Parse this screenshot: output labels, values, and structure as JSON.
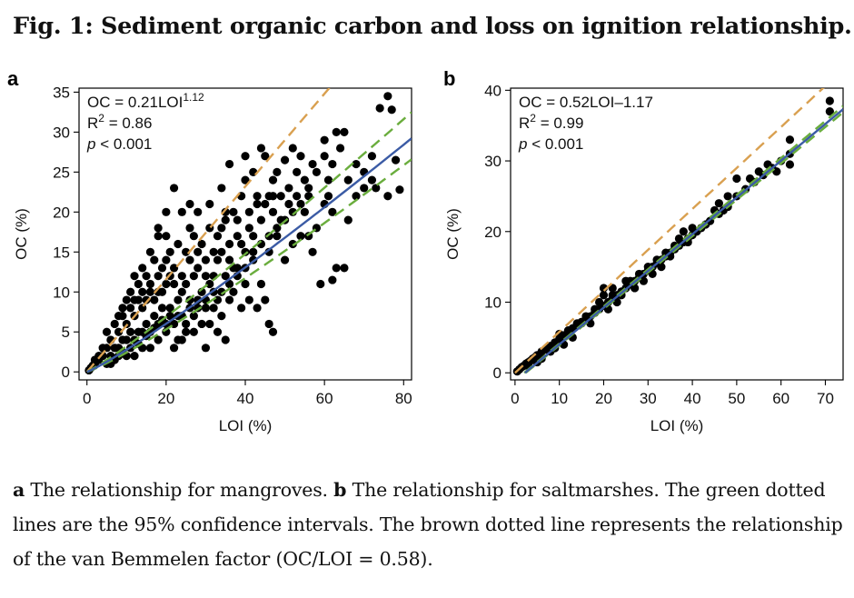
{
  "figure": {
    "title": "Fig. 1: Sediment organic carbon and loss on ignition relationship.",
    "caption": {
      "a_label": "a",
      "a_text": " The relationship for mangroves. ",
      "b_label": "b",
      "b_text": " The relationship for saltmarshes. The green dotted lines are the 95% confidence intervals. The brown dotted line represents the relationship of the van Bemmelen factor (OC/LOI = 0.58)."
    }
  },
  "colors": {
    "points": "#000000",
    "fit": "#3b5ba5",
    "ci": "#6aad3d",
    "van_bemmelen": "#d9a050"
  },
  "chart_data": [
    {
      "panel": "a",
      "type": "scatter",
      "xlabel": "LOI (%)",
      "ylabel": "OC (%)",
      "xlim": [
        -2,
        82
      ],
      "ylim": [
        -1,
        35.5
      ],
      "xticks": [
        0,
        20,
        40,
        60,
        80
      ],
      "yticks": [
        0,
        5,
        10,
        15,
        20,
        25,
        30,
        35
      ],
      "annotation": {
        "line1_base": "OC = 0.21LOI",
        "line1_exp": "1.12",
        "r2_label": "R",
        "r2_exp": "2",
        "r2_value": " = 0.86",
        "p_label": "p",
        "p_value": " < 0.001"
      },
      "fit": {
        "form": "power",
        "a": 0.21,
        "b": 1.12
      },
      "ci": [
        {
          "form": "power",
          "a": 0.175,
          "b": 1.14
        },
        {
          "form": "power",
          "a": 0.255,
          "b": 1.1
        }
      ],
      "van_bemmelen": {
        "slope": 0.58
      },
      "points": [
        [
          76,
          34.5
        ],
        [
          77,
          32.8
        ],
        [
          74,
          33
        ],
        [
          72,
          27
        ],
        [
          79,
          22.8
        ],
        [
          76,
          22
        ],
        [
          78,
          26.5
        ],
        [
          65,
          30
        ],
        [
          60,
          27
        ],
        [
          57,
          26
        ],
        [
          58,
          25
        ],
        [
          55,
          24
        ],
        [
          53,
          22
        ],
        [
          51,
          23
        ],
        [
          63,
          30
        ],
        [
          64,
          28
        ],
        [
          62,
          26
        ],
        [
          61,
          24
        ],
        [
          70,
          25
        ],
        [
          72,
          24
        ],
        [
          73,
          23
        ],
        [
          66,
          19
        ],
        [
          61,
          22
        ],
        [
          62,
          11.5
        ],
        [
          59,
          11
        ],
        [
          63,
          13
        ],
        [
          60,
          29
        ],
        [
          56,
          23
        ],
        [
          54,
          27
        ],
        [
          50,
          26.5
        ],
        [
          48,
          25
        ],
        [
          45,
          27
        ],
        [
          46,
          22
        ],
        [
          43,
          22
        ],
        [
          41,
          18
        ],
        [
          44,
          19
        ],
        [
          47,
          20
        ],
        [
          42,
          14
        ],
        [
          38,
          13
        ],
        [
          36,
          9
        ],
        [
          34,
          7
        ],
        [
          32,
          10
        ],
        [
          30,
          12
        ],
        [
          28,
          9
        ],
        [
          26,
          9
        ],
        [
          24,
          10
        ],
        [
          22,
          11
        ],
        [
          25,
          15
        ],
        [
          27,
          17
        ],
        [
          29,
          16
        ],
        [
          31,
          18
        ],
        [
          33,
          17
        ],
        [
          35,
          19
        ],
        [
          37,
          20
        ],
        [
          39,
          22
        ],
        [
          40,
          24
        ],
        [
          42,
          25
        ],
        [
          36,
          26
        ],
        [
          34,
          23
        ],
        [
          31,
          21
        ],
        [
          28,
          20
        ],
        [
          26,
          18
        ],
        [
          23,
          16
        ],
        [
          20,
          14
        ],
        [
          22,
          23
        ],
        [
          24,
          20
        ],
        [
          26,
          21
        ],
        [
          18,
          12
        ],
        [
          16,
          10
        ],
        [
          14,
          8
        ],
        [
          12,
          7
        ],
        [
          10,
          6
        ],
        [
          8,
          5
        ],
        [
          6,
          4
        ],
        [
          5,
          5
        ],
        [
          4,
          2
        ],
        [
          3,
          1.5
        ],
        [
          2,
          1
        ],
        [
          1,
          0.5
        ],
        [
          0.5,
          0.2
        ],
        [
          7,
          3
        ],
        [
          9,
          4
        ],
        [
          11,
          5
        ],
        [
          13,
          5
        ],
        [
          15,
          6
        ],
        [
          17,
          7
        ],
        [
          19,
          8
        ],
        [
          21,
          8
        ],
        [
          23,
          7
        ],
        [
          25,
          6
        ],
        [
          27,
          7
        ],
        [
          29,
          6
        ],
        [
          31,
          6
        ],
        [
          33,
          5
        ],
        [
          35,
          4
        ],
        [
          20,
          5
        ],
        [
          18,
          4
        ],
        [
          16,
          3
        ],
        [
          14,
          3
        ],
        [
          12,
          2
        ],
        [
          10,
          2
        ],
        [
          8,
          2
        ],
        [
          22,
          3
        ],
        [
          24,
          4
        ],
        [
          15,
          12
        ],
        [
          13,
          11
        ],
        [
          11,
          10
        ],
        [
          17,
          14
        ],
        [
          19,
          13
        ],
        [
          21,
          15
        ],
        [
          44,
          11
        ],
        [
          45,
          9
        ],
        [
          43,
          8
        ],
        [
          46,
          6
        ],
        [
          47,
          5
        ],
        [
          30,
          3
        ],
        [
          35,
          20
        ],
        [
          38,
          17
        ],
        [
          40,
          15
        ],
        [
          42,
          17
        ],
        [
          46,
          15
        ],
        [
          48,
          17
        ],
        [
          50,
          14
        ],
        [
          52,
          16
        ],
        [
          45,
          21
        ],
        [
          49,
          19
        ],
        [
          41,
          9
        ],
        [
          39,
          8
        ],
        [
          37,
          10
        ],
        [
          40,
          11
        ],
        [
          32,
          12
        ],
        [
          30,
          14
        ],
        [
          28,
          13
        ],
        [
          33,
          14
        ],
        [
          34,
          15
        ],
        [
          36,
          16
        ],
        [
          20,
          20
        ],
        [
          18,
          18
        ],
        [
          40,
          27
        ],
        [
          44,
          28
        ],
        [
          52,
          28
        ],
        [
          55,
          20
        ],
        [
          58,
          18
        ],
        [
          54,
          17
        ],
        [
          56,
          17
        ],
        [
          57,
          15
        ],
        [
          65,
          13
        ],
        [
          68,
          26
        ],
        [
          70,
          23
        ],
        [
          47,
          24
        ],
        [
          53,
          25
        ],
        [
          49,
          22
        ],
        [
          6,
          1
        ],
        [
          7,
          1.5
        ],
        [
          9,
          2.5
        ],
        [
          11,
          3
        ],
        [
          13,
          3.5
        ],
        [
          15,
          4.5
        ],
        [
          17,
          5.5
        ],
        [
          19,
          6.5
        ],
        [
          21,
          7
        ],
        [
          23,
          9
        ],
        [
          25,
          11
        ],
        [
          27,
          12
        ],
        [
          29,
          10
        ],
        [
          31,
          11
        ],
        [
          33,
          9
        ],
        [
          35,
          12
        ],
        [
          37,
          13
        ],
        [
          14,
          13
        ],
        [
          16,
          15
        ],
        [
          12,
          12
        ],
        [
          10,
          9
        ],
        [
          8,
          7
        ],
        [
          18,
          17
        ],
        [
          20,
          17
        ],
        [
          24,
          12
        ],
        [
          26,
          14
        ],
        [
          28,
          15
        ],
        [
          22,
          13
        ],
        [
          15,
          9
        ],
        [
          17,
          9
        ],
        [
          19,
          10
        ],
        [
          13,
          9
        ],
        [
          11,
          8
        ],
        [
          9,
          7
        ],
        [
          7,
          6
        ],
        [
          5,
          3
        ],
        [
          4,
          3
        ],
        [
          3,
          2
        ],
        [
          2,
          1.5
        ],
        [
          1.5,
          0.8
        ],
        [
          5,
          1
        ],
        [
          6,
          2
        ],
        [
          8,
          3
        ],
        [
          10,
          4
        ],
        [
          12,
          4
        ],
        [
          14,
          5
        ],
        [
          16,
          5
        ],
        [
          18,
          6
        ],
        [
          20,
          6
        ],
        [
          22,
          6
        ],
        [
          24,
          7
        ],
        [
          26,
          8
        ],
        [
          28,
          8
        ],
        [
          30,
          9
        ],
        [
          32,
          8
        ],
        [
          34,
          10
        ],
        [
          36,
          11
        ],
        [
          38,
          12
        ],
        [
          40,
          13
        ],
        [
          42,
          15
        ],
        [
          44,
          16
        ],
        [
          46,
          17
        ],
        [
          48,
          18
        ],
        [
          50,
          19
        ],
        [
          52,
          20
        ],
        [
          54,
          21
        ],
        [
          56,
          22
        ],
        [
          23,
          4
        ],
        [
          25,
          5
        ],
        [
          27,
          5
        ],
        [
          9,
          8
        ],
        [
          12,
          9
        ],
        [
          14,
          10
        ],
        [
          16,
          11
        ],
        [
          18,
          10
        ],
        [
          20,
          11
        ],
        [
          21,
          12
        ],
        [
          30,
          8
        ],
        [
          32,
          15
        ],
        [
          34,
          18
        ],
        [
          36,
          14
        ],
        [
          38,
          19
        ],
        [
          39,
          16
        ],
        [
          41,
          20
        ],
        [
          43,
          21
        ],
        [
          47,
          22
        ],
        [
          51,
          21
        ],
        [
          60,
          21
        ],
        [
          62,
          20
        ],
        [
          66,
          24
        ],
        [
          68,
          22
        ]
      ]
    },
    {
      "panel": "b",
      "type": "scatter",
      "xlabel": "LOI (%)",
      "ylabel": "OC (%)",
      "xlim": [
        -1,
        74
      ],
      "ylim": [
        -1,
        40.3
      ],
      "xticks": [
        0,
        10,
        20,
        30,
        40,
        50,
        60,
        70
      ],
      "yticks": [
        0,
        10,
        20,
        30,
        40
      ],
      "annotation": {
        "line1_base": "OC = 0.52LOI–1.17",
        "line1_exp": "",
        "r2_label": "R",
        "r2_exp": "2",
        "r2_value": " = 0.99",
        "p_label": "p",
        "p_value": " < 0.001"
      },
      "fit": {
        "form": "linear",
        "slope": 0.52,
        "intercept": -1.17
      },
      "ci": [
        {
          "form": "linear",
          "slope": 0.515,
          "intercept": -1.25
        },
        {
          "form": "linear",
          "slope": 0.525,
          "intercept": -1.09
        }
      ],
      "van_bemmelen": {
        "slope": 0.58
      },
      "points": [
        [
          0.5,
          0.2
        ],
        [
          1,
          0.5
        ],
        [
          1.5,
          0.8
        ],
        [
          2,
          1
        ],
        [
          2.5,
          1.3
        ],
        [
          3,
          1.5
        ],
        [
          3.5,
          1.7
        ],
        [
          4,
          2
        ],
        [
          4.5,
          2.2
        ],
        [
          5,
          2.5
        ],
        [
          6,
          3
        ],
        [
          7,
          3.3
        ],
        [
          8,
          3.8
        ],
        [
          9,
          4.3
        ],
        [
          10,
          4.8
        ],
        [
          11,
          5.3
        ],
        [
          12,
          5.8
        ],
        [
          13,
          6.3
        ],
        [
          14,
          6.8
        ],
        [
          15,
          7.2
        ],
        [
          16,
          7.5
        ],
        [
          17,
          8
        ],
        [
          18,
          8.5
        ],
        [
          19,
          9
        ],
        [
          20,
          9.5
        ],
        [
          21,
          10
        ],
        [
          22,
          10.5
        ],
        [
          23,
          11
        ],
        [
          24,
          11.5
        ],
        [
          25,
          12
        ],
        [
          26,
          12.5
        ],
        [
          27,
          13
        ],
        [
          28,
          13.5
        ],
        [
          29,
          14
        ],
        [
          30,
          14.5
        ],
        [
          31,
          15
        ],
        [
          32,
          15.5
        ],
        [
          33,
          16
        ],
        [
          34,
          16.5
        ],
        [
          35,
          17
        ],
        [
          36,
          17.5
        ],
        [
          37,
          18
        ],
        [
          38,
          18.5
        ],
        [
          39,
          19
        ],
        [
          40,
          19.5
        ],
        [
          42,
          20.5
        ],
        [
          44,
          21.5
        ],
        [
          46,
          22.5
        ],
        [
          48,
          23.5
        ],
        [
          50,
          25
        ],
        [
          52,
          26
        ],
        [
          54,
          27
        ],
        [
          56,
          28
        ],
        [
          58,
          29
        ],
        [
          60,
          30
        ],
        [
          62,
          31
        ],
        [
          62,
          33
        ],
        [
          62,
          29.5
        ],
        [
          71,
          38.5
        ],
        [
          71,
          37
        ],
        [
          55,
          28.5
        ],
        [
          48,
          25
        ],
        [
          50,
          27.5
        ],
        [
          45,
          23
        ],
        [
          20,
          11
        ],
        [
          22,
          12
        ],
        [
          25,
          13
        ],
        [
          18,
          9
        ],
        [
          15,
          7
        ],
        [
          12,
          6
        ],
        [
          10,
          5.5
        ],
        [
          14,
          7
        ],
        [
          16,
          8
        ],
        [
          19,
          10
        ],
        [
          21,
          9
        ],
        [
          23,
          10
        ],
        [
          26,
          13
        ],
        [
          29,
          13
        ],
        [
          31,
          14
        ],
        [
          33,
          15
        ],
        [
          36,
          18
        ],
        [
          38,
          20
        ],
        [
          41,
          20
        ],
        [
          43,
          21
        ],
        [
          47,
          23
        ],
        [
          5,
          1.5
        ],
        [
          8,
          3
        ],
        [
          11,
          4
        ],
        [
          13,
          5
        ],
        [
          17,
          7
        ],
        [
          24,
          11
        ],
        [
          27,
          12
        ],
        [
          30,
          15
        ],
        [
          34,
          17
        ],
        [
          37,
          19
        ],
        [
          39,
          18.5
        ],
        [
          3,
          1
        ],
        [
          6,
          2
        ],
        [
          9,
          3.5
        ],
        [
          20,
          12
        ],
        [
          22,
          11
        ],
        [
          28,
          14
        ],
        [
          32,
          16
        ],
        [
          35,
          16.5
        ],
        [
          40,
          20.5
        ],
        [
          46,
          24
        ],
        [
          53,
          27.5
        ],
        [
          57,
          29.5
        ],
        [
          59,
          28.5
        ]
      ]
    }
  ]
}
